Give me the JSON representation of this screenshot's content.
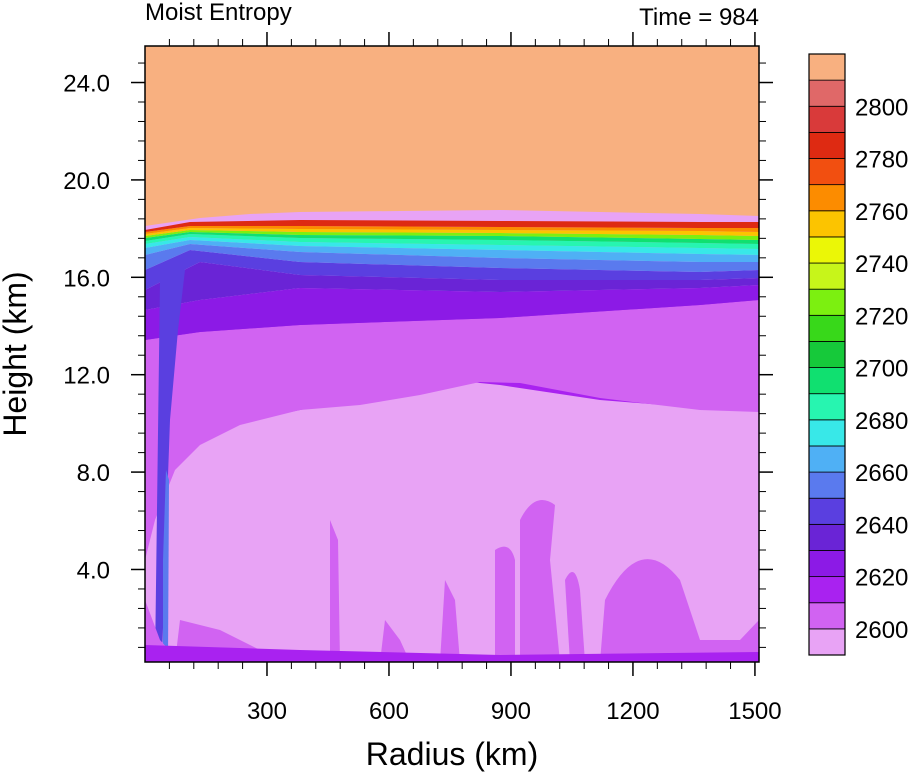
{
  "chart_data": {
    "type": "heatmap",
    "title_left": "Moist Entropy",
    "title_right": "Time = 984",
    "xlabel": "Radius (km)",
    "ylabel": "Height (km)",
    "xlim": [
      0,
      1510
    ],
    "ylim": [
      0.2,
      25.5
    ],
    "x_ticks": [
      300,
      600,
      900,
      1200,
      1500
    ],
    "x_tick_labels": [
      "300",
      "600",
      "900",
      "1200",
      "1500"
    ],
    "y_ticks": [
      4,
      8,
      12,
      16,
      20,
      24
    ],
    "y_tick_labels": [
      "4.0",
      "8.0",
      "12.0",
      "16.0",
      "20.0",
      "24.0"
    ],
    "colorbar": {
      "levels": [
        2600,
        2610,
        2620,
        2630,
        2640,
        2650,
        2660,
        2670,
        2680,
        2690,
        2700,
        2710,
        2720,
        2730,
        2740,
        2750,
        2760,
        2770,
        2780,
        2790,
        2800
      ],
      "labels": [
        "2600",
        "2620",
        "2640",
        "2660",
        "2680",
        "2700",
        "2720",
        "2740",
        "2760",
        "2780",
        "2800"
      ],
      "colors": [
        "#e8a3f5",
        "#d163f2",
        "#a922f0",
        "#8c1ae6",
        "#6a24d6",
        "#5a3fe0",
        "#5a7aee",
        "#4fb0f5",
        "#38e8e8",
        "#27f5b0",
        "#10e070",
        "#16c93a",
        "#38d81a",
        "#7cf010",
        "#c7f51a",
        "#ebf706",
        "#fcc400",
        "#fc8c00",
        "#f24f10",
        "#de2a12",
        "#d93a3a",
        "#e06868",
        "#f8b080"
      ]
    }
  }
}
